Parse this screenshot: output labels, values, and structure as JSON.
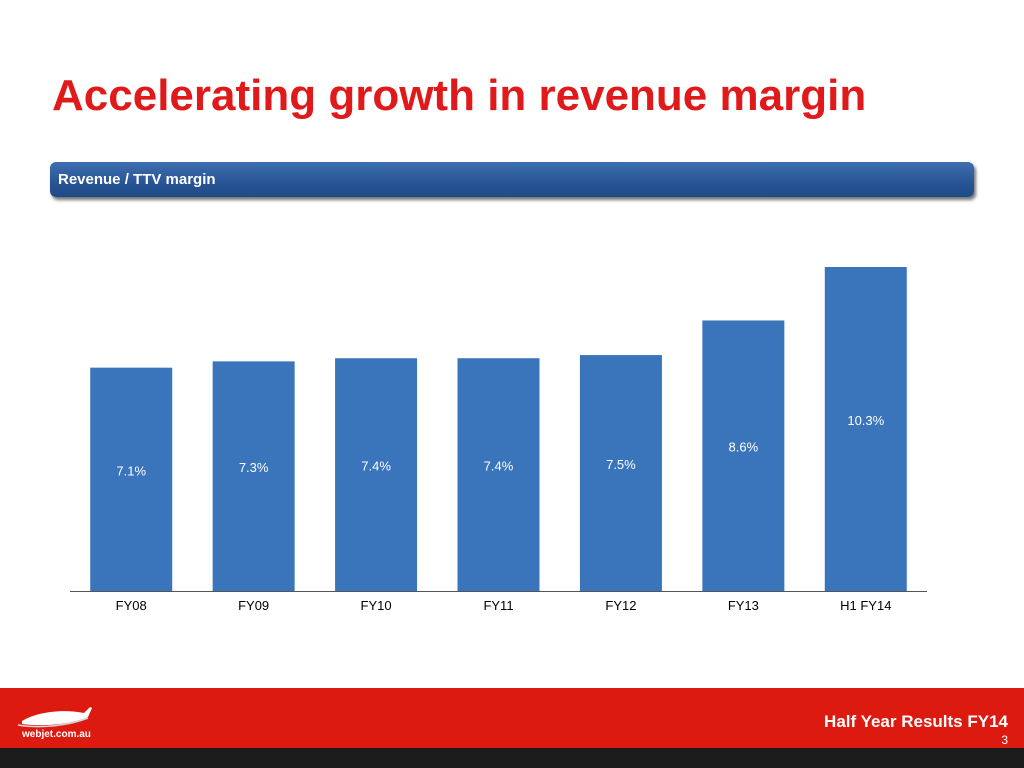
{
  "slide": {
    "title": "Accelerating growth in revenue margin",
    "banner_label": "Revenue / TTV margin",
    "footer_title": "Half Year Results FY14",
    "page_number": "3",
    "logo_text": "webjet.com.au"
  },
  "colors": {
    "title": "#e01a1a",
    "bar": "#3a74bb",
    "footer_red": "#dd1a10",
    "footer_dark": "#1c1c1c",
    "axis": "#555555"
  },
  "chart_data": {
    "type": "bar",
    "title": "Revenue / TTV margin",
    "categories": [
      "FY08",
      "FY09",
      "FY10",
      "FY11",
      "FY12",
      "FY13",
      "H1 FY14"
    ],
    "values": [
      7.1,
      7.3,
      7.4,
      7.4,
      7.5,
      8.6,
      10.3
    ],
    "data_labels": [
      "7.1%",
      "7.3%",
      "7.4%",
      "7.4%",
      "7.5%",
      "8.6%",
      "10.3%"
    ],
    "unit": "%",
    "ylim": [
      0,
      10.3
    ],
    "grid": false,
    "legend": "none"
  }
}
